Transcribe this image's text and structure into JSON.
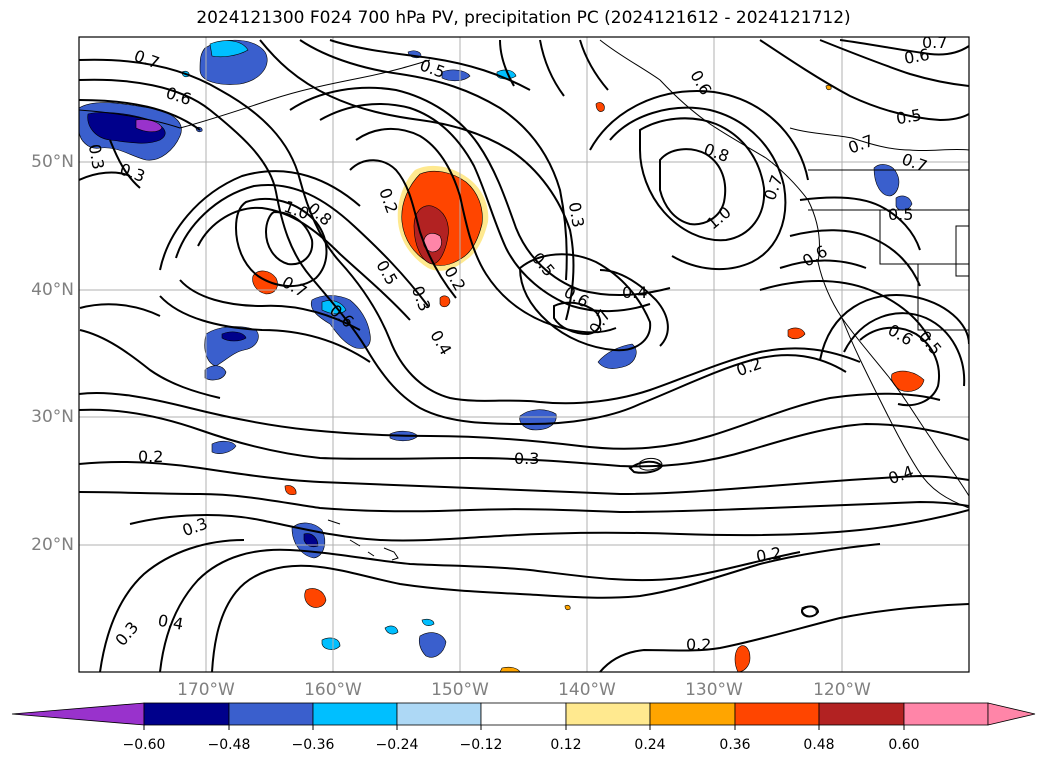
{
  "title": "2024121300 F024 700 hPa PV, precipitation PC (2024121612 - 2024121712)",
  "map": {
    "lat_labels": [
      "50°N",
      "40°N",
      "30°N",
      "20°N"
    ],
    "lon_labels": [
      "170°W",
      "160°W",
      "150°W",
      "140°W",
      "130°W",
      "120°W"
    ],
    "grid": true,
    "contour_color": "#000000",
    "coastline_color": "#000000"
  },
  "contour_labels": [
    "0.7",
    "0.6",
    "0.3",
    "0.3",
    "0.5",
    "0.7",
    "0.6",
    "0.6",
    "0.5",
    "0.7",
    "1.0",
    "0.8",
    "0.2",
    "0.7",
    "0.6",
    "0.5",
    "0.3",
    "0.4",
    "0.2",
    "0.3",
    "0.5",
    "0.6",
    "0.7",
    "0.4",
    "0.8",
    "0.7",
    "1.0",
    "0.7",
    "0.5",
    "0.6",
    "0.6",
    "0.5",
    "0.2",
    "0.2",
    "0.3",
    "0.3",
    "0.4",
    "0.2",
    "0.3",
    "0.4",
    "0.2"
  ],
  "colorbar": {
    "ticks": [
      "−0.60",
      "−0.48",
      "−0.36",
      "−0.24",
      "−0.12",
      "0.12",
      "0.24",
      "0.36",
      "0.48",
      "0.60"
    ],
    "colors": [
      "#9932cc",
      "#00008b",
      "#3a5fcd",
      "#00bfff",
      "#add8f5",
      "#ffffff",
      "#ffe98f",
      "#ffa500",
      "#ff4500",
      "#b22222",
      "#ff85a8",
      "#ff85a8"
    ]
  }
}
